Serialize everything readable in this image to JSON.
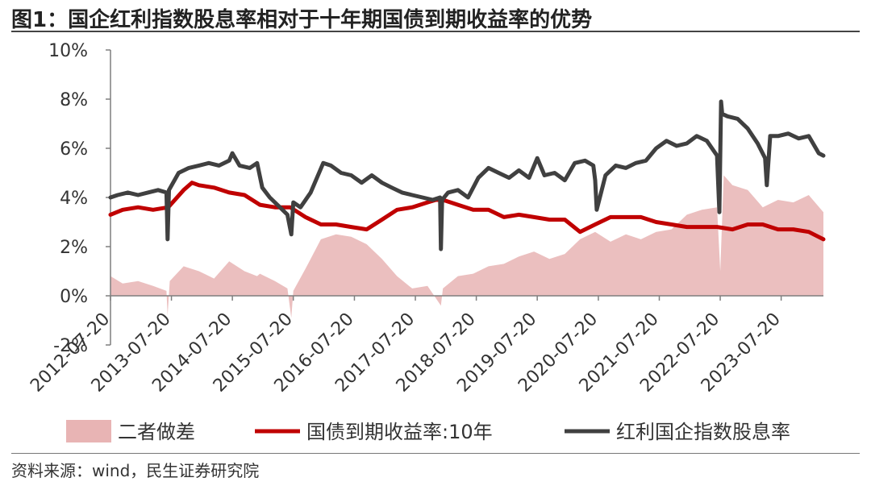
{
  "figure": {
    "title": "图1：国企红利指数股息率相对于十年期国债到期收益率的优势",
    "source": "资料来源：wind，民生证券研究院"
  },
  "chart_data": {
    "type": "line",
    "y_ticks": [
      "10%",
      "8%",
      "6%",
      "4%",
      "2%",
      "0%",
      "-2%"
    ],
    "y_tick_values": [
      10,
      8,
      6,
      4,
      2,
      0,
      -2
    ],
    "ylim": [
      -2,
      10
    ],
    "x_tick_labels": [
      "2012-07-20",
      "2013-07-20",
      "2014-07-20",
      "2015-07-20",
      "2016-07-20",
      "2017-07-20",
      "2018-07-20",
      "2019-07-20",
      "2020-07-20",
      "2021-07-20",
      "2022-07-20",
      "2023-07-20"
    ],
    "xlim": [
      "2012-07-20",
      "2024-03-29"
    ],
    "grid": false,
    "legend_position": "bottom",
    "series": [
      {
        "name": "二者做差",
        "kind": "area",
        "color": "#e8b4b4",
        "x": [
          "2012-07-20",
          "2012-10-01",
          "2013-01-01",
          "2013-04-01",
          "2013-06-20",
          "2013-06-27",
          "2013-07-10",
          "2013-10-01",
          "2014-01-01",
          "2014-04-01",
          "2014-07-01",
          "2014-10-01",
          "2014-12-15",
          "2015-01-01",
          "2015-04-01",
          "2015-06-15",
          "2015-07-08",
          "2015-07-20",
          "2015-10-01",
          "2016-01-01",
          "2016-04-01",
          "2016-07-01",
          "2016-10-01",
          "2017-01-01",
          "2017-04-01",
          "2017-07-01",
          "2017-10-01",
          "2017-12-20",
          "2018-01-01",
          "2018-04-01",
          "2018-07-01",
          "2018-10-01",
          "2019-01-01",
          "2019-04-01",
          "2019-07-01",
          "2019-10-01",
          "2020-01-01",
          "2020-04-01",
          "2020-07-01",
          "2020-10-01",
          "2021-01-01",
          "2021-04-01",
          "2021-07-01",
          "2021-10-01",
          "2022-01-01",
          "2022-04-01",
          "2022-07-01",
          "2022-07-20",
          "2022-08-10",
          "2022-10-01",
          "2023-01-01",
          "2023-04-01",
          "2023-07-01",
          "2023-10-01",
          "2024-01-01",
          "2024-03-29"
        ],
        "values": [
          0.8,
          0.5,
          0.6,
          0.4,
          0.2,
          -0.8,
          0.6,
          1.2,
          1.0,
          0.7,
          1.4,
          1.0,
          0.8,
          0.9,
          0.6,
          0.3,
          -0.9,
          0.2,
          1.1,
          2.3,
          2.5,
          2.4,
          2.1,
          1.5,
          0.8,
          0.3,
          0.4,
          -0.4,
          0.3,
          0.8,
          0.9,
          1.2,
          1.3,
          1.6,
          1.8,
          1.5,
          1.7,
          2.3,
          2.6,
          2.2,
          2.5,
          2.3,
          2.6,
          2.7,
          3.3,
          3.5,
          3.6,
          1.0,
          4.9,
          4.5,
          4.3,
          3.6,
          3.9,
          3.8,
          4.1,
          3.4
        ]
      },
      {
        "name": "国债到期收益率:10年",
        "kind": "line",
        "color": "#c00000",
        "x": [
          "2012-07-20",
          "2012-10-01",
          "2013-01-01",
          "2013-04-01",
          "2013-07-01",
          "2013-10-01",
          "2013-11-20",
          "2014-01-01",
          "2014-04-01",
          "2014-07-01",
          "2014-10-01",
          "2015-01-01",
          "2015-04-01",
          "2015-07-01",
          "2015-10-01",
          "2016-01-01",
          "2016-04-01",
          "2016-07-01",
          "2016-10-01",
          "2017-01-01",
          "2017-04-01",
          "2017-07-01",
          "2017-10-01",
          "2017-11-20",
          "2018-01-01",
          "2018-04-01",
          "2018-07-01",
          "2018-10-01",
          "2019-01-01",
          "2019-04-01",
          "2019-07-01",
          "2019-10-01",
          "2020-01-01",
          "2020-04-01",
          "2020-07-01",
          "2020-10-01",
          "2021-01-01",
          "2021-04-01",
          "2021-07-01",
          "2021-10-01",
          "2022-01-01",
          "2022-04-01",
          "2022-07-01",
          "2022-10-01",
          "2023-01-01",
          "2023-04-01",
          "2023-07-01",
          "2023-10-01",
          "2024-01-01",
          "2024-03-29"
        ],
        "values": [
          3.3,
          3.5,
          3.6,
          3.5,
          3.6,
          4.3,
          4.6,
          4.5,
          4.4,
          4.2,
          4.1,
          3.7,
          3.6,
          3.6,
          3.2,
          2.9,
          2.9,
          2.8,
          2.7,
          3.1,
          3.5,
          3.6,
          3.8,
          3.9,
          3.9,
          3.7,
          3.5,
          3.5,
          3.2,
          3.3,
          3.2,
          3.1,
          3.1,
          2.6,
          2.9,
          3.2,
          3.2,
          3.2,
          3.0,
          2.9,
          2.8,
          2.8,
          2.8,
          2.7,
          2.9,
          2.9,
          2.7,
          2.7,
          2.6,
          2.3
        ]
      },
      {
        "name": "红利国企指数股息率",
        "kind": "line",
        "color": "#404040",
        "x": [
          "2012-07-20",
          "2012-09-01",
          "2012-11-01",
          "2013-01-01",
          "2013-03-01",
          "2013-05-01",
          "2013-06-20",
          "2013-06-27",
          "2013-07-05",
          "2013-09-01",
          "2013-11-01",
          "2014-01-01",
          "2014-03-01",
          "2014-05-01",
          "2014-07-01",
          "2014-07-20",
          "2014-09-01",
          "2014-11-01",
          "2014-12-15",
          "2015-01-15",
          "2015-03-01",
          "2015-05-01",
          "2015-06-15",
          "2015-07-08",
          "2015-07-20",
          "2015-09-01",
          "2015-11-01",
          "2016-01-15",
          "2016-03-01",
          "2016-05-01",
          "2016-07-01",
          "2016-09-01",
          "2016-11-01",
          "2017-01-01",
          "2017-03-01",
          "2017-05-01",
          "2017-07-01",
          "2017-09-01",
          "2017-11-01",
          "2017-12-15",
          "2017-12-20",
          "2017-12-27",
          "2018-02-01",
          "2018-04-01",
          "2018-06-01",
          "2018-08-01",
          "2018-10-01",
          "2018-12-01",
          "2019-02-01",
          "2019-04-01",
          "2019-06-01",
          "2019-07-20",
          "2019-09-01",
          "2019-11-01",
          "2020-01-01",
          "2020-03-01",
          "2020-05-01",
          "2020-06-20",
          "2020-07-01",
          "2020-07-10",
          "2020-09-01",
          "2020-11-01",
          "2021-01-01",
          "2021-03-01",
          "2021-05-01",
          "2021-07-01",
          "2021-09-01",
          "2021-11-01",
          "2022-01-01",
          "2022-03-01",
          "2022-05-01",
          "2022-07-01",
          "2022-07-15",
          "2022-07-25",
          "2022-08-01",
          "2022-09-01",
          "2022-11-01",
          "2023-01-01",
          "2023-03-01",
          "2023-04-15",
          "2023-04-25",
          "2023-05-15",
          "2023-07-01",
          "2023-09-01",
          "2023-11-01",
          "2024-01-01",
          "2024-03-01",
          "2024-03-29"
        ],
        "values": [
          4.0,
          4.1,
          4.2,
          4.1,
          4.2,
          4.3,
          4.2,
          2.3,
          4.3,
          5.0,
          5.2,
          5.3,
          5.4,
          5.3,
          5.5,
          5.8,
          5.3,
          5.2,
          5.4,
          4.4,
          4.0,
          3.6,
          3.3,
          2.5,
          3.8,
          3.6,
          4.2,
          5.4,
          5.3,
          5.0,
          4.9,
          4.6,
          4.9,
          4.6,
          4.4,
          4.2,
          4.1,
          4.0,
          3.9,
          4.0,
          1.9,
          3.9,
          4.2,
          4.3,
          4.0,
          4.8,
          5.2,
          5.0,
          4.8,
          5.1,
          4.8,
          5.6,
          4.9,
          5.0,
          4.7,
          5.4,
          5.5,
          5.3,
          4.7,
          3.5,
          4.9,
          5.3,
          5.2,
          5.4,
          5.5,
          6.0,
          6.3,
          6.1,
          6.2,
          6.5,
          6.3,
          5.7,
          3.4,
          7.9,
          7.4,
          7.3,
          7.2,
          6.8,
          6.2,
          5.6,
          4.5,
          6.5,
          6.5,
          6.6,
          6.4,
          6.5,
          5.8,
          5.7
        ]
      }
    ]
  }
}
